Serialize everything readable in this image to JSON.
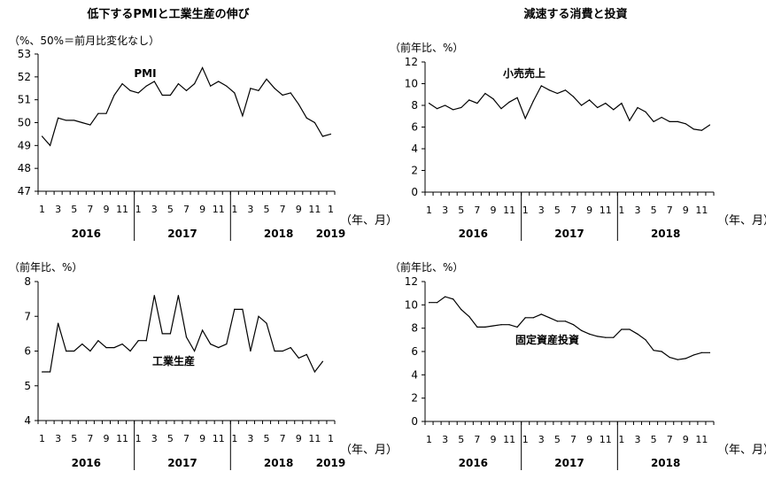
{
  "chart_data": [
    {
      "type": "line",
      "title": "低下するPMIと工業生産の伸び",
      "unit_label": "（%、50%＝前月比変化なし）",
      "series_label": "PMI",
      "ylim": [
        47,
        53
      ],
      "yticks": [
        47,
        48,
        49,
        50,
        51,
        52,
        53
      ],
      "xtick_labels": [
        "1",
        "3",
        "5",
        "7",
        "9",
        "11",
        "1",
        "3",
        "5",
        "7",
        "9",
        "11",
        "1",
        "3",
        "5",
        "7",
        "9",
        "11",
        "1"
      ],
      "year_labels": [
        "2016",
        "2017",
        "2018",
        "2019"
      ],
      "x_suffix": "（年、月）",
      "values": [
        49.4,
        49.0,
        50.2,
        50.1,
        50.1,
        50.0,
        49.9,
        50.4,
        50.4,
        51.2,
        51.7,
        51.4,
        51.3,
        51.6,
        51.8,
        51.2,
        51.2,
        51.7,
        51.4,
        51.7,
        52.4,
        51.6,
        51.8,
        51.6,
        51.3,
        50.3,
        51.5,
        51.4,
        51.9,
        51.5,
        51.2,
        51.3,
        50.8,
        50.2,
        50.0,
        49.4,
        49.5
      ]
    },
    {
      "type": "line",
      "title": "減速する消費と投資",
      "unit_label": "（前年比、%）",
      "series_label": "小売売上",
      "ylim": [
        0,
        12
      ],
      "yticks": [
        0,
        2,
        4,
        6,
        8,
        10,
        12
      ],
      "xtick_labels": [
        "1",
        "3",
        "5",
        "7",
        "9",
        "11",
        "1",
        "3",
        "5",
        "7",
        "9",
        "11",
        "1",
        "3",
        "5",
        "7",
        "9",
        "11"
      ],
      "year_labels": [
        "2016",
        "2017",
        "2018"
      ],
      "x_suffix": "（年、月）",
      "values": [
        8.2,
        7.7,
        8.0,
        7.6,
        7.8,
        8.5,
        8.2,
        9.1,
        8.6,
        7.7,
        8.3,
        8.7,
        6.8,
        8.4,
        9.8,
        9.4,
        9.1,
        9.4,
        8.8,
        8.0,
        8.5,
        7.8,
        8.2,
        7.6,
        8.2,
        6.6,
        7.8,
        7.4,
        6.5,
        6.9,
        6.5,
        6.5,
        6.3,
        5.8,
        5.7,
        6.2
      ]
    },
    {
      "type": "line",
      "title": "",
      "unit_label": "（前年比、%）",
      "series_label": "工業生産",
      "ylim": [
        4,
        8
      ],
      "yticks": [
        4,
        5,
        6,
        7,
        8
      ],
      "xtick_labels": [
        "1",
        "3",
        "5",
        "7",
        "9",
        "11",
        "1",
        "3",
        "5",
        "7",
        "9",
        "11",
        "1",
        "3",
        "5",
        "7",
        "9",
        "11",
        "1"
      ],
      "year_labels": [
        "2016",
        "2017",
        "2018",
        "2019"
      ],
      "x_suffix": "（年、月）",
      "values": [
        5.4,
        5.4,
        6.8,
        6.0,
        6.0,
        6.2,
        6.0,
        6.3,
        6.1,
        6.1,
        6.2,
        6.0,
        6.3,
        6.3,
        7.6,
        6.5,
        6.5,
        7.6,
        6.4,
        6.0,
        6.6,
        6.2,
        6.1,
        6.2,
        7.2,
        7.2,
        6.0,
        7.0,
        6.8,
        6.0,
        6.0,
        6.1,
        5.8,
        5.9,
        5.4,
        5.7
      ]
    },
    {
      "type": "line",
      "title": "",
      "unit_label": "（前年比、%）",
      "series_label": "固定資産投資",
      "ylim": [
        0,
        12
      ],
      "yticks": [
        0,
        2,
        4,
        6,
        8,
        10,
        12
      ],
      "xtick_labels": [
        "1",
        "3",
        "5",
        "7",
        "9",
        "11",
        "1",
        "3",
        "5",
        "7",
        "9",
        "11",
        "1",
        "3",
        "5",
        "7",
        "9",
        "11"
      ],
      "year_labels": [
        "2016",
        "2017",
        "2018"
      ],
      "x_suffix": "（年、月）",
      "values": [
        10.2,
        10.2,
        10.7,
        10.5,
        9.6,
        9.0,
        8.1,
        8.1,
        8.2,
        8.3,
        8.3,
        8.1,
        8.9,
        8.9,
        9.2,
        8.9,
        8.6,
        8.6,
        8.3,
        7.8,
        7.5,
        7.3,
        7.2,
        7.2,
        7.9,
        7.9,
        7.5,
        7.0,
        6.1,
        6.0,
        5.5,
        5.3,
        5.4,
        5.7,
        5.9,
        5.9
      ]
    }
  ]
}
